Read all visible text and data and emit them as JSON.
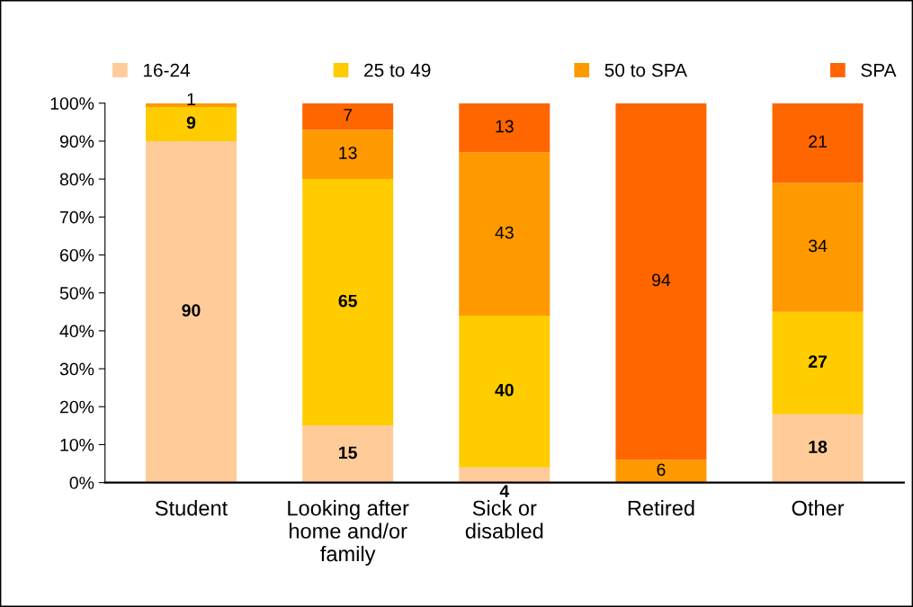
{
  "chart_data": {
    "type": "bar",
    "stacked": true,
    "categories": [
      "Student",
      "Looking after\nhome and/or\nfamily",
      "Sick or\ndisabled",
      "Retired",
      "Other"
    ],
    "series": [
      {
        "name": "16-24",
        "color": "#ffcc99",
        "values": [
          90,
          15,
          4,
          0,
          18
        ],
        "value_labels": [
          "90",
          "15",
          "4",
          null,
          "18"
        ]
      },
      {
        "name": "25 to 49",
        "color": "#ffcc00",
        "values": [
          9,
          65,
          40,
          0,
          27
        ],
        "value_labels": [
          "9",
          "65",
          "40",
          null,
          "27"
        ]
      },
      {
        "name": "50 to SPA",
        "color": "#ff9900",
        "values": [
          1,
          13,
          43,
          6,
          34
        ],
        "value_labels": [
          "1",
          "13",
          "43",
          "6",
          "34"
        ]
      },
      {
        "name": "SPA",
        "color": "#ff6600",
        "values": [
          0,
          7,
          13,
          94,
          21
        ],
        "value_labels": [
          null,
          "7",
          "13",
          "94",
          "21"
        ]
      }
    ],
    "ylim": [
      0,
      100
    ],
    "yticks": [
      {
        "value": 0,
        "label": "0%"
      },
      {
        "value": 10,
        "label": "10%"
      },
      {
        "value": 20,
        "label": "20%"
      },
      {
        "value": 30,
        "label": "30%"
      },
      {
        "value": 40,
        "label": "40%"
      },
      {
        "value": 50,
        "label": "50%"
      },
      {
        "value": 60,
        "label": "60%"
      },
      {
        "value": 70,
        "label": "70%"
      },
      {
        "value": 80,
        "label": "80%"
      },
      {
        "value": 90,
        "label": "90%"
      },
      {
        "value": 100,
        "label": "100%"
      }
    ],
    "grid": false,
    "legend": "top"
  }
}
